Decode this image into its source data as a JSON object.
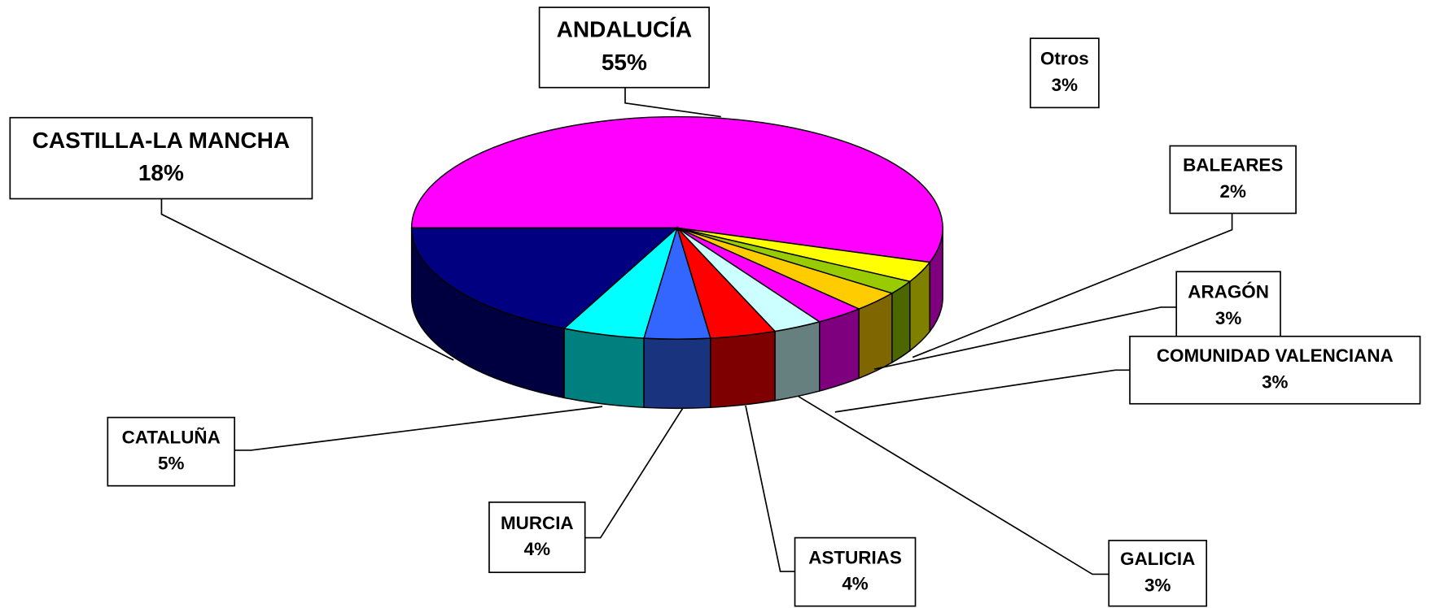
{
  "chart_data": {
    "type": "pie",
    "categories": [
      "ANDALUCÍA",
      "Otros",
      "BALEARES",
      "ARAGÓN",
      "COMUNIDAD VALENCIANA",
      "GALICIA",
      "ASTURIAS",
      "MURCIA",
      "CATALUÑA",
      "CASTILLA-LA MANCHA"
    ],
    "values": [
      55,
      3,
      2,
      3,
      3,
      3,
      4,
      4,
      5,
      18
    ],
    "value_labels": [
      "55%",
      "3%",
      "2%",
      "3%",
      "3%",
      "3%",
      "4%",
      "4%",
      "5%",
      "18%"
    ],
    "colors": [
      "#ff00ff",
      "#ffff00",
      "#99cc00",
      "#ffcc00",
      "#ff00ff",
      "#ccffff",
      "#ff0000",
      "#3366ff",
      "#00ffff",
      "#000080"
    ]
  }
}
